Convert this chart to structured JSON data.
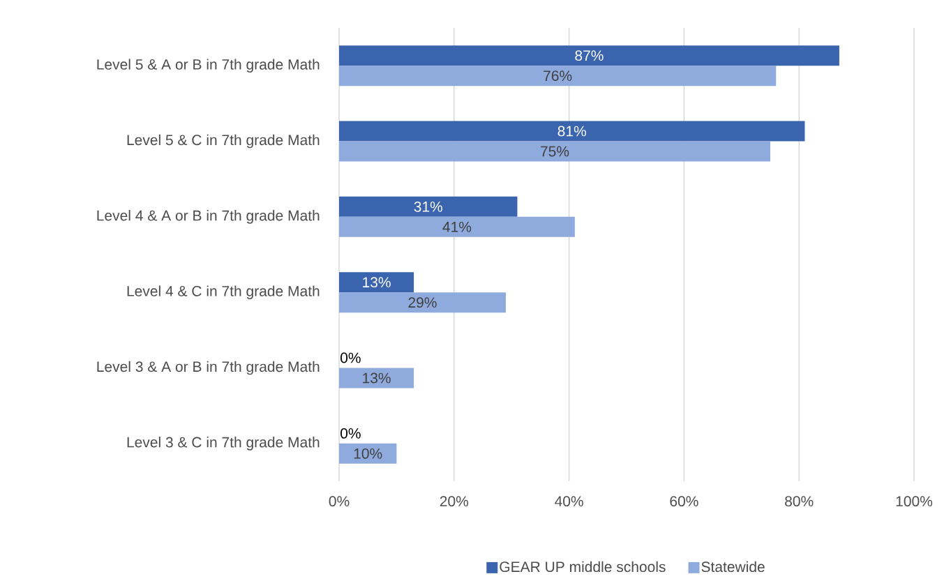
{
  "chart_data": {
    "type": "bar",
    "orientation": "horizontal",
    "categories": [
      "Level 5 & A or B in 7th grade Math",
      "Level 5 & C in 7th grade Math",
      "Level 4 & A or B in 7th grade Math",
      "Level 4 & C in 7th grade Math",
      "Level 3 & A or B in 7th grade Math",
      "Level 3 & C in 7th grade Math"
    ],
    "series": [
      {
        "name": "GEAR UP middle schools",
        "color": "#3a64ad",
        "values": [
          87,
          81,
          31,
          13,
          0,
          0
        ],
        "value_labels": [
          "87%",
          "81%",
          "31%",
          "13%",
          "0%",
          "0%"
        ]
      },
      {
        "name": "Statewide",
        "color": "#8faadc",
        "values": [
          76,
          75,
          41,
          29,
          13,
          10
        ],
        "value_labels": [
          "76%",
          "75%",
          "41%",
          "29%",
          "13%",
          "10%"
        ]
      }
    ],
    "xlim": [
      0,
      100
    ],
    "xticks": [
      {
        "value": 0,
        "label": "0%"
      },
      {
        "value": 20,
        "label": "20%"
      },
      {
        "value": 40,
        "label": "40%"
      },
      {
        "value": 60,
        "label": "60%"
      },
      {
        "value": 80,
        "label": "80%"
      },
      {
        "value": 100,
        "label": "100%"
      }
    ],
    "grid": "x",
    "legend": "bottom"
  }
}
